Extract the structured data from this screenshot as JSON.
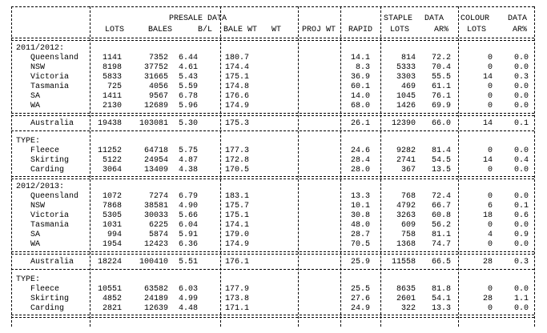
{
  "header": {
    "presale": "PRESALE DATA",
    "lots": "LOTS",
    "bales": "BALES",
    "bl": "B/L",
    "bale_wt": "BALE WT   WT",
    "proj_wt": "PROJ WT",
    "rapid": "RAPID",
    "staple": "STAPLE",
    "staple_lots": "LOTS",
    "data1": "DATA",
    "ar1": "AR%",
    "colour": "COLOUR",
    "colour_lots": "LOTS",
    "data2": "DATA",
    "ar2": "AR%"
  },
  "sections": [
    {
      "label": "2011/2012:",
      "rows": [
        [
          "Queensland",
          "1141",
          "7352",
          "6.44",
          "180.7",
          "14.1",
          "814",
          "72.2",
          "0",
          "0.0"
        ],
        [
          "NSW",
          "8198",
          "37752",
          "4.61",
          "174.4",
          "8.3",
          "5333",
          "70.4",
          "0",
          "0.0"
        ],
        [
          "Victoria",
          "5833",
          "31665",
          "5.43",
          "175.1",
          "36.9",
          "3303",
          "55.5",
          "14",
          "0.3"
        ],
        [
          "Tasmania",
          "725",
          "4056",
          "5.59",
          "174.8",
          "60.1",
          "469",
          "61.1",
          "0",
          "0.0"
        ],
        [
          "SA",
          "1411",
          "9567",
          "6.78",
          "176.6",
          "14.0",
          "1045",
          "76.1",
          "0",
          "0.0"
        ],
        [
          "WA",
          "2130",
          "12689",
          "5.96",
          "174.9",
          "68.0",
          "1426",
          "69.9",
          "0",
          "0.0"
        ]
      ],
      "total": [
        "Australia",
        "19438",
        "103081",
        "5.30",
        "175.3",
        "26.1",
        "12390",
        "66.0",
        "14",
        "0.1"
      ],
      "type_label": "TYPE:",
      "type_rows": [
        [
          "Fleece",
          "11252",
          "64718",
          "5.75",
          "177.3",
          "24.6",
          "9282",
          "81.4",
          "0",
          "0.0"
        ],
        [
          "Skirting",
          "5122",
          "24954",
          "4.87",
          "172.8",
          "28.4",
          "2741",
          "54.5",
          "14",
          "0.4"
        ],
        [
          "Carding",
          "3064",
          "13409",
          "4.38",
          "170.5",
          "28.0",
          "367",
          "13.5",
          "0",
          "0.0"
        ]
      ]
    },
    {
      "label": "2012/2013:",
      "rows": [
        [
          "Queensland",
          "1072",
          "7274",
          "6.79",
          "183.1",
          "13.3",
          "768",
          "72.4",
          "0",
          "0.0"
        ],
        [
          "NSW",
          "7868",
          "38581",
          "4.90",
          "175.7",
          "10.1",
          "4792",
          "66.7",
          "6",
          "0.1"
        ],
        [
          "Victoria",
          "5305",
          "30033",
          "5.66",
          "175.1",
          "30.8",
          "3263",
          "60.8",
          "18",
          "0.6"
        ],
        [
          "Tasmania",
          "1031",
          "6225",
          "6.04",
          "174.1",
          "48.0",
          "609",
          "56.2",
          "0",
          "0.0"
        ],
        [
          "SA",
          "994",
          "5874",
          "5.91",
          "179.0",
          "28.7",
          "758",
          "81.1",
          "4",
          "0.9"
        ],
        [
          "WA",
          "1954",
          "12423",
          "6.36",
          "174.9",
          "70.5",
          "1368",
          "74.7",
          "0",
          "0.0"
        ]
      ],
      "total": [
        "Australia",
        "18224",
        "100410",
        "5.51",
        "176.1",
        "25.9",
        "11558",
        "66.5",
        "28",
        "0.3"
      ],
      "type_label": "TYPE:",
      "type_rows": [
        [
          "Fleece",
          "10551",
          "63582",
          "6.03",
          "177.9",
          "25.5",
          "8635",
          "81.8",
          "0",
          "0.0"
        ],
        [
          "Skirting",
          "4852",
          "24189",
          "4.99",
          "173.8",
          "27.6",
          "2601",
          "54.1",
          "28",
          "1.1"
        ],
        [
          "Carding",
          "2821",
          "12639",
          "4.48",
          "171.1",
          "24.9",
          "322",
          "13.3",
          "0",
          "0.0"
        ]
      ]
    }
  ]
}
